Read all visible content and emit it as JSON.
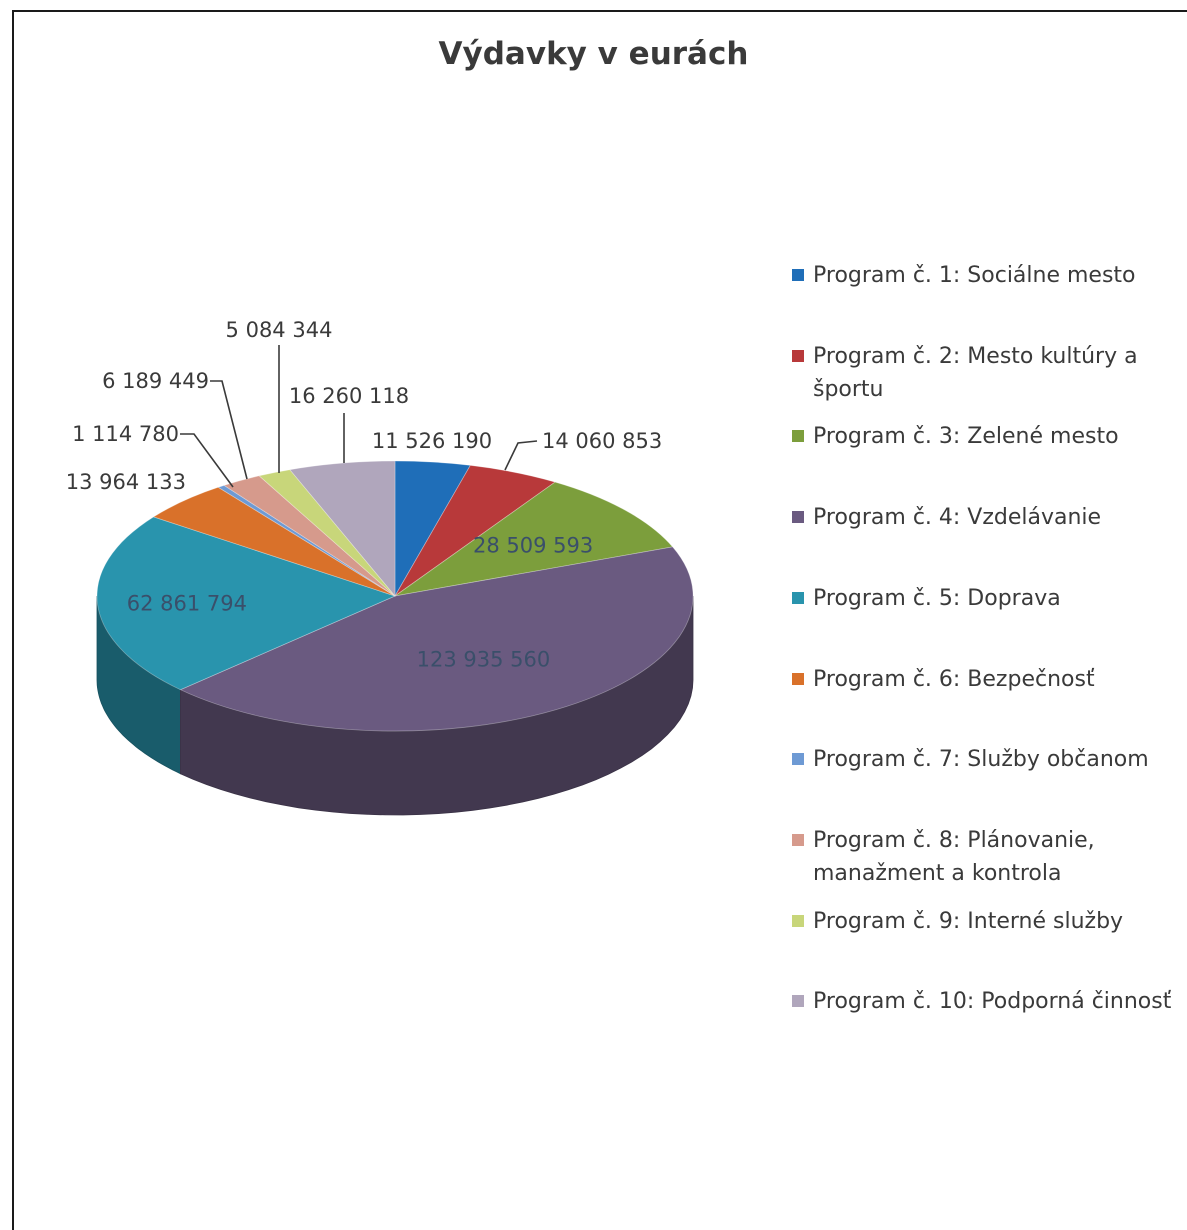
{
  "chart_data": {
    "type": "pie",
    "title": "Výdavky v eurách",
    "legend_position": "right",
    "three_d": true,
    "slices": [
      {
        "name": "Program č. 1: Sociálne mesto",
        "value": 11526190,
        "label": "11 526 190",
        "color": "#1F6EB8"
      },
      {
        "name": "Program č. 2: Mesto kultúry a športu",
        "value": 14060853,
        "label": "14 060 853",
        "color": "#B8393A"
      },
      {
        "name": "Program č. 3: Zelené mesto",
        "value": 28509593,
        "label": "28 509 593",
        "color": "#7C9E3C"
      },
      {
        "name": "Program č. 4: Vzdelávanie",
        "value": 123935560,
        "label": "123 935 560",
        "color": "#6A5A80"
      },
      {
        "name": "Program č. 5: Doprava",
        "value": 62861794,
        "label": "62 861 794",
        "color": "#2994AD"
      },
      {
        "name": "Program č. 6: Bezpečnosť",
        "value": 13964133,
        "label": "13 964 133",
        "color": "#D9712A"
      },
      {
        "name": "Program č. 7: Služby občanom",
        "value": 1114780,
        "label": "1 114 780",
        "color": "#6E9AD4"
      },
      {
        "name": "Program č. 8: Plánovanie, manažment a kontrola",
        "value": 6189449,
        "label": "6 189 449",
        "color": "#D69A8C"
      },
      {
        "name": "Program č. 9: Interné služby",
        "value": 5084344,
        "label": "5 084 344",
        "color": "#C8D67A"
      },
      {
        "name": "Program č. 10: Podporná činnosť",
        "value": 16260118,
        "label": "16 260 118",
        "color": "#B0A6BC"
      }
    ]
  }
}
